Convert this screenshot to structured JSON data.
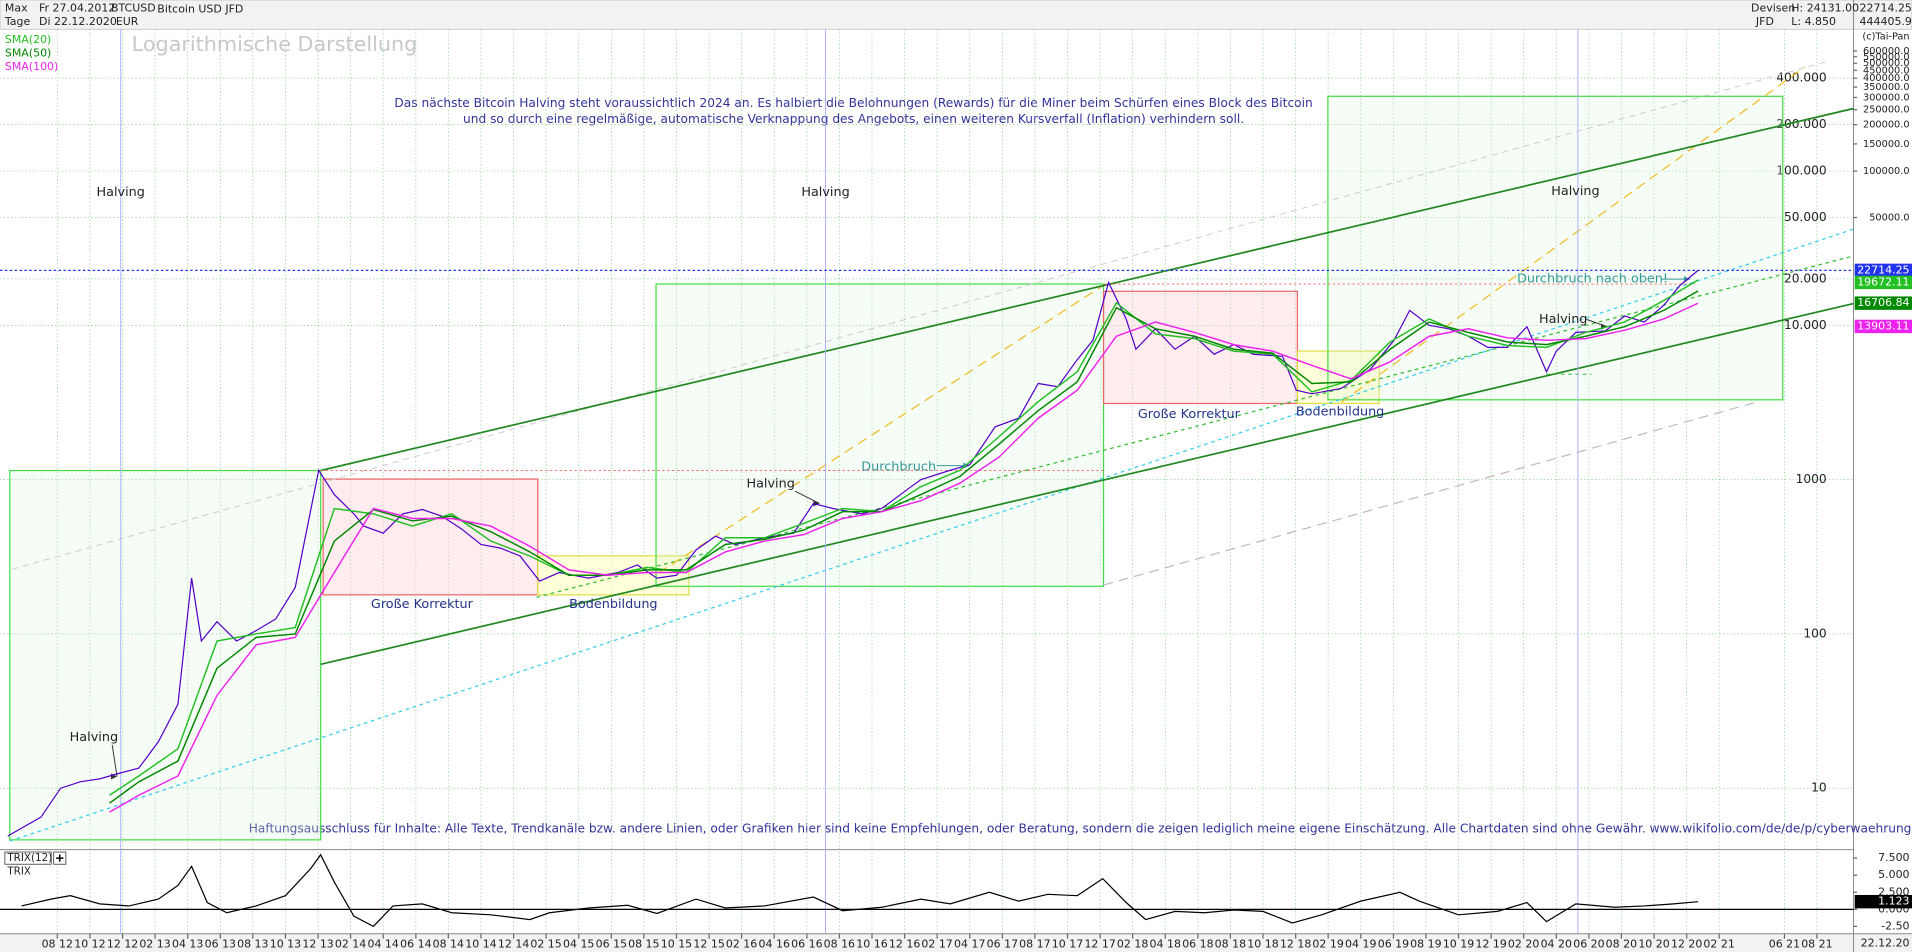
{
  "header": {
    "period": "Max",
    "from": "Fr 27.04.2012",
    "symbol": "BTCUSD",
    "interval": "Tage",
    "to": "Di 22.12.2020",
    "currency": "EUR",
    "market": "Devisen",
    "broker": "JFD",
    "high": "H: 24131.00",
    "low": "L: 4.850",
    "last": "22714.25",
    "volume": "444405.9/",
    "copyright": "(c)Tai-Pan"
  },
  "chart_data": [
    {
      "type": "line",
      "title": "Logarithmische Darstellung",
      "log_scale": true,
      "grid": true,
      "legend": "upper left",
      "description": [
        "Das nächste Bitcoin Halving steht voraussichtlich 2024 an. Es halbiert die Belohnungen (Rewards) für die Miner beim Schürfen eines Block des Bitcoin",
        "und so durch eine regelmäßige, automatische Verknappung des Angebots, einen weiteren Kursverfall (Inflation) verhindern soll."
      ],
      "disclaimer": "Haftungsausschluss für Inhalte: Alle Texte, Trendkanäle bzw. andere Linien, oder Grafiken hier sind keine Empfehlungen, oder Beratung, sondern die zeigen lediglich meine eigene Einschätzung. Alle Chartdaten sind ohne Gewähr.  www.wikifolio.com/de/de/p/cyberwaehrungen",
      "annotations": [
        "Halving",
        "Halving",
        "Halving",
        "Halving",
        "Halving",
        "Halving",
        "Große Korrektur",
        "Große Korrektur",
        "Bodenbildung",
        "Bodenbildung",
        "Durchbruch",
        "Durchbruch nach oben!"
      ],
      "last_date_label": "22.12.20",
      "xlim": [
        2012.29,
        2021.77
      ],
      "xticks": [
        {
          "value": 2012.583,
          "label": "08 12"
        },
        {
          "value": 2012.75,
          "label": "10 12"
        },
        {
          "value": 2012.917,
          "label": "12 12"
        },
        {
          "value": 2013.083,
          "label": "02 13"
        },
        {
          "value": 2013.25,
          "label": "04 13"
        },
        {
          "value": 2013.417,
          "label": "06 13"
        },
        {
          "value": 2013.583,
          "label": "08 13"
        },
        {
          "value": 2013.75,
          "label": "10 13"
        },
        {
          "value": 2013.917,
          "label": "12 13"
        },
        {
          "value": 2014.083,
          "label": "02 14"
        },
        {
          "value": 2014.25,
          "label": "04 14"
        },
        {
          "value": 2014.417,
          "label": "06 14"
        },
        {
          "value": 2014.583,
          "label": "08 14"
        },
        {
          "value": 2014.75,
          "label": "10 14"
        },
        {
          "value": 2014.917,
          "label": "12 14"
        },
        {
          "value": 2015.083,
          "label": "02 15"
        },
        {
          "value": 2015.25,
          "label": "04 15"
        },
        {
          "value": 2015.417,
          "label": "06 15"
        },
        {
          "value": 2015.583,
          "label": "08 15"
        },
        {
          "value": 2015.75,
          "label": "10 15"
        },
        {
          "value": 2015.917,
          "label": "12 15"
        },
        {
          "value": 2016.083,
          "label": "02 16"
        },
        {
          "value": 2016.25,
          "label": "04 16"
        },
        {
          "value": 2016.417,
          "label": "06 16"
        },
        {
          "value": 2016.583,
          "label": "08 16"
        },
        {
          "value": 2016.75,
          "label": "10 16"
        },
        {
          "value": 2016.917,
          "label": "12 16"
        },
        {
          "value": 2017.083,
          "label": "02 17"
        },
        {
          "value": 2017.25,
          "label": "04 17"
        },
        {
          "value": 2017.417,
          "label": "06 17"
        },
        {
          "value": 2017.583,
          "label": "08 17"
        },
        {
          "value": 2017.75,
          "label": "10 17"
        },
        {
          "value": 2017.917,
          "label": "12 17"
        },
        {
          "value": 2018.083,
          "label": "02 18"
        },
        {
          "value": 2018.25,
          "label": "04 18"
        },
        {
          "value": 2018.417,
          "label": "06 18"
        },
        {
          "value": 2018.583,
          "label": "08 18"
        },
        {
          "value": 2018.75,
          "label": "10 18"
        },
        {
          "value": 2018.917,
          "label": "12 18"
        },
        {
          "value": 2019.083,
          "label": "02 19"
        },
        {
          "value": 2019.25,
          "label": "04 19"
        },
        {
          "value": 2019.417,
          "label": "06 19"
        },
        {
          "value": 2019.583,
          "label": "08 19"
        },
        {
          "value": 2019.75,
          "label": "10 19"
        },
        {
          "value": 2019.917,
          "label": "12 19"
        },
        {
          "value": 2020.083,
          "label": "02 20"
        },
        {
          "value": 2020.25,
          "label": "04 20"
        },
        {
          "value": 2020.417,
          "label": "06 20"
        },
        {
          "value": 2020.583,
          "label": "08 20"
        },
        {
          "value": 2020.75,
          "label": "10 20"
        },
        {
          "value": 2020.917,
          "label": "12 20"
        },
        {
          "value": 2021.083,
          "label": "02 21"
        },
        {
          "value": 2021.417,
          "label": "06 21"
        },
        {
          "value": 2021.583,
          "label": "08 21"
        }
      ],
      "ylim": [
        4,
        830000
      ],
      "yticks": [
        10,
        100,
        1000,
        {
          "value": 10000,
          "label": "10.000"
        },
        {
          "value": 20000,
          "label": "20.000"
        },
        {
          "value": 50000,
          "label": "50.000"
        },
        {
          "value": 100000,
          "label": "100.000"
        },
        {
          "value": 200000,
          "label": "200.000"
        },
        {
          "value": 400000,
          "label": "400.000"
        }
      ],
      "y2lim": [
        4,
        830000
      ],
      "y2ticks": [
        {
          "value": 50000,
          "label": "50000.0"
        },
        {
          "value": 100000,
          "label": "100000.0"
        },
        {
          "value": 150000,
          "label": "150000.0"
        },
        {
          "value": 200000,
          "label": "200000.0"
        },
        {
          "value": 250000,
          "label": "250000.0"
        },
        {
          "value": 300000,
          "label": "300000.0"
        },
        {
          "value": 350000,
          "label": "350000.0"
        },
        {
          "value": 400000,
          "label": "400000.0"
        },
        {
          "value": 450000,
          "label": "450000.0"
        },
        {
          "value": 500000,
          "label": "500000.0"
        },
        {
          "value": 550000,
          "label": "550000.0"
        },
        {
          "value": 600000,
          "label": "600000.0"
        }
      ],
      "series": [
        {
          "name": "Bitcoin USD JFD",
          "color": "#5500cc",
          "x": [
            2012.33,
            2012.5,
            2012.6,
            2012.7,
            2012.8,
            2012.9,
            2013.0,
            2013.1,
            2013.2,
            2013.27,
            2013.32,
            2013.4,
            2013.5,
            2013.6,
            2013.7,
            2013.8,
            2013.92,
            2014.0,
            2014.1,
            2014.15,
            2014.25,
            2014.35,
            2014.45,
            2014.55,
            2014.65,
            2014.75,
            2014.85,
            2014.95,
            2015.05,
            2015.15,
            2015.3,
            2015.45,
            2015.55,
            2015.65,
            2015.75,
            2015.85,
            2015.95,
            2016.05,
            2016.2,
            2016.35,
            2016.45,
            2016.55,
            2016.7,
            2016.8,
            2016.95,
            2017.0,
            2017.15,
            2017.25,
            2017.38,
            2017.5,
            2017.6,
            2017.7,
            2017.8,
            2017.88,
            2017.96,
            2018.05,
            2018.1,
            2018.2,
            2018.3,
            2018.4,
            2018.5,
            2018.6,
            2018.7,
            2018.85,
            2018.92,
            2019.0,
            2019.15,
            2019.3,
            2019.42,
            2019.5,
            2019.6,
            2019.7,
            2019.8,
            2019.9,
            2020.0,
            2020.1,
            2020.2,
            2020.25,
            2020.35,
            2020.5,
            2020.6,
            2020.7,
            2020.8,
            2020.88,
            2020.975
          ],
          "values": [
            4.9,
            6.5,
            10,
            11,
            11.5,
            12.5,
            13.5,
            20,
            35,
            230,
            90,
            120,
            90,
            105,
            125,
            200,
            1150,
            800,
            600,
            500,
            450,
            600,
            640,
            580,
            480,
            380,
            360,
            320,
            220,
            250,
            230,
            250,
            280,
            230,
            240,
            350,
            430,
            380,
            420,
            450,
            700,
            650,
            600,
            650,
            900,
            1000,
            1150,
            1250,
            2200,
            2500,
            4200,
            4000,
            6000,
            8000,
            19000,
            11000,
            7000,
            9500,
            7000,
            8500,
            6500,
            7500,
            6500,
            6300,
            3800,
            3600,
            3900,
            5200,
            8000,
            12500,
            10000,
            9500,
            8500,
            7200,
            7200,
            9800,
            5000,
            6800,
            9000,
            9200,
            11500,
            10500,
            13500,
            18000,
            22714.25
          ]
        },
        {
          "name": "SMA(20)",
          "color": "#22c022",
          "x": [
            2012.85,
            2013.0,
            2013.2,
            2013.4,
            2013.6,
            2013.8,
            2014.0,
            2014.2,
            2014.4,
            2014.6,
            2014.8,
            2015.0,
            2015.2,
            2015.4,
            2015.6,
            2015.8,
            2016.0,
            2016.2,
            2016.4,
            2016.6,
            2016.8,
            2017.0,
            2017.2,
            2017.4,
            2017.6,
            2017.8,
            2018.0,
            2018.2,
            2018.4,
            2018.6,
            2018.8,
            2019.0,
            2019.2,
            2019.4,
            2019.6,
            2019.8,
            2020.0,
            2020.2,
            2020.4,
            2020.6,
            2020.8,
            2020.975
          ],
          "values": [
            9,
            12,
            18,
            90,
            100,
            110,
            650,
            600,
            500,
            600,
            400,
            320,
            240,
            240,
            270,
            250,
            420,
            420,
            520,
            650,
            620,
            900,
            1150,
            1900,
            3200,
            5000,
            14000,
            8800,
            8200,
            6800,
            6500,
            3700,
            4400,
            7800,
            11000,
            8500,
            7400,
            7200,
            9000,
            10500,
            14500,
            19672.11
          ]
        },
        {
          "name": "SMA(50)",
          "color": "#008800",
          "x": [
            2012.85,
            2013.0,
            2013.2,
            2013.4,
            2013.6,
            2013.8,
            2014.0,
            2014.2,
            2014.4,
            2014.6,
            2014.8,
            2015.0,
            2015.2,
            2015.4,
            2015.6,
            2015.8,
            2016.0,
            2016.2,
            2016.4,
            2016.6,
            2016.8,
            2017.0,
            2017.2,
            2017.4,
            2017.6,
            2017.8,
            2018.0,
            2018.2,
            2018.4,
            2018.6,
            2018.8,
            2019.0,
            2019.2,
            2019.4,
            2019.6,
            2019.8,
            2020.0,
            2020.2,
            2020.4,
            2020.6,
            2020.8,
            2020.975
          ],
          "values": [
            8,
            11,
            15,
            60,
            95,
            100,
            400,
            640,
            540,
            580,
            460,
            340,
            240,
            240,
            260,
            260,
            380,
            410,
            470,
            620,
            620,
            800,
            1050,
            1700,
            2800,
            4300,
            13000,
            9500,
            8500,
            7000,
            6600,
            4200,
            4300,
            7000,
            10500,
            9000,
            7800,
            7500,
            8500,
            9800,
            12500,
            16706.84
          ]
        },
        {
          "name": "SMA(100)",
          "color": "#ee22ee",
          "x": [
            2012.85,
            2013.0,
            2013.2,
            2013.4,
            2013.6,
            2013.8,
            2014.0,
            2014.2,
            2014.4,
            2014.6,
            2014.8,
            2015.0,
            2015.2,
            2015.4,
            2015.6,
            2015.8,
            2016.0,
            2016.2,
            2016.4,
            2016.6,
            2016.8,
            2017.0,
            2017.2,
            2017.4,
            2017.6,
            2017.8,
            2018.0,
            2018.2,
            2018.4,
            2018.6,
            2018.8,
            2019.0,
            2019.2,
            2019.4,
            2019.6,
            2019.8,
            2020.0,
            2020.2,
            2020.4,
            2020.6,
            2020.8,
            2020.975
          ],
          "values": [
            7,
            9,
            12,
            40,
            85,
            95,
            250,
            650,
            560,
            560,
            500,
            370,
            260,
            240,
            250,
            250,
            340,
            400,
            440,
            560,
            620,
            730,
            950,
            1400,
            2500,
            3800,
            8500,
            10500,
            9000,
            7500,
            6800,
            5500,
            4500,
            5800,
            8500,
            9500,
            8300,
            8000,
            8200,
            9300,
            11000,
            13903.11
          ]
        }
      ]
    },
    {
      "type": "line",
      "title": "TRIX(12)",
      "xlim": [
        2012.29,
        2021.77
      ],
      "ylim": [
        -3.57,
        8.57
      ],
      "yticks": [
        {
          "value": 7.5,
          "label": "7.500"
        },
        {
          "value": 5,
          "label": "5.000"
        },
        {
          "value": 2.5,
          "label": "2.500"
        },
        {
          "value": 0,
          "label": "0.000"
        },
        {
          "value": -2.5,
          "label": "-2.50"
        }
      ],
      "series": [
        {
          "name": "TRIX",
          "color": "#000000",
          "x": [
            2012.4,
            2012.55,
            2012.65,
            2012.8,
            2012.95,
            2013.1,
            2013.2,
            2013.27,
            2013.35,
            2013.45,
            2013.6,
            2013.75,
            2013.88,
            2013.93,
            2014.0,
            2014.1,
            2014.2,
            2014.3,
            2014.45,
            2014.6,
            2014.8,
            2015.0,
            2015.1,
            2015.3,
            2015.5,
            2015.65,
            2015.85,
            2016.0,
            2016.2,
            2016.45,
            2016.6,
            2016.8,
            2017.0,
            2017.15,
            2017.35,
            2017.5,
            2017.65,
            2017.8,
            2017.93,
            2018.05,
            2018.15,
            2018.3,
            2018.45,
            2018.6,
            2018.75,
            2018.9,
            2019.05,
            2019.25,
            2019.45,
            2019.55,
            2019.75,
            2019.95,
            2020.1,
            2020.2,
            2020.35,
            2020.55,
            2020.7,
            2020.85,
            2020.975
          ],
          "values": [
            0.5,
            1.5,
            2.0,
            0.8,
            0.5,
            1.5,
            3.5,
            6.3,
            1.0,
            -0.5,
            0.5,
            2.0,
            6.0,
            8.0,
            4.0,
            -1.0,
            -2.5,
            0.5,
            0.8,
            -0.5,
            -0.8,
            -1.5,
            -0.5,
            0.2,
            0.6,
            -0.6,
            1.5,
            0.2,
            0.5,
            1.8,
            -0.2,
            0.3,
            1.5,
            0.8,
            2.5,
            1.2,
            2.2,
            2.0,
            4.5,
            1.0,
            -1.5,
            -0.3,
            -0.5,
            -0.1,
            -0.3,
            -2.0,
            -0.8,
            1.2,
            2.5,
            1.2,
            -0.8,
            -0.3,
            1.0,
            -1.8,
            0.8,
            0.3,
            0.5,
            0.8,
            1.123
          ]
        }
      ]
    }
  ]
}
